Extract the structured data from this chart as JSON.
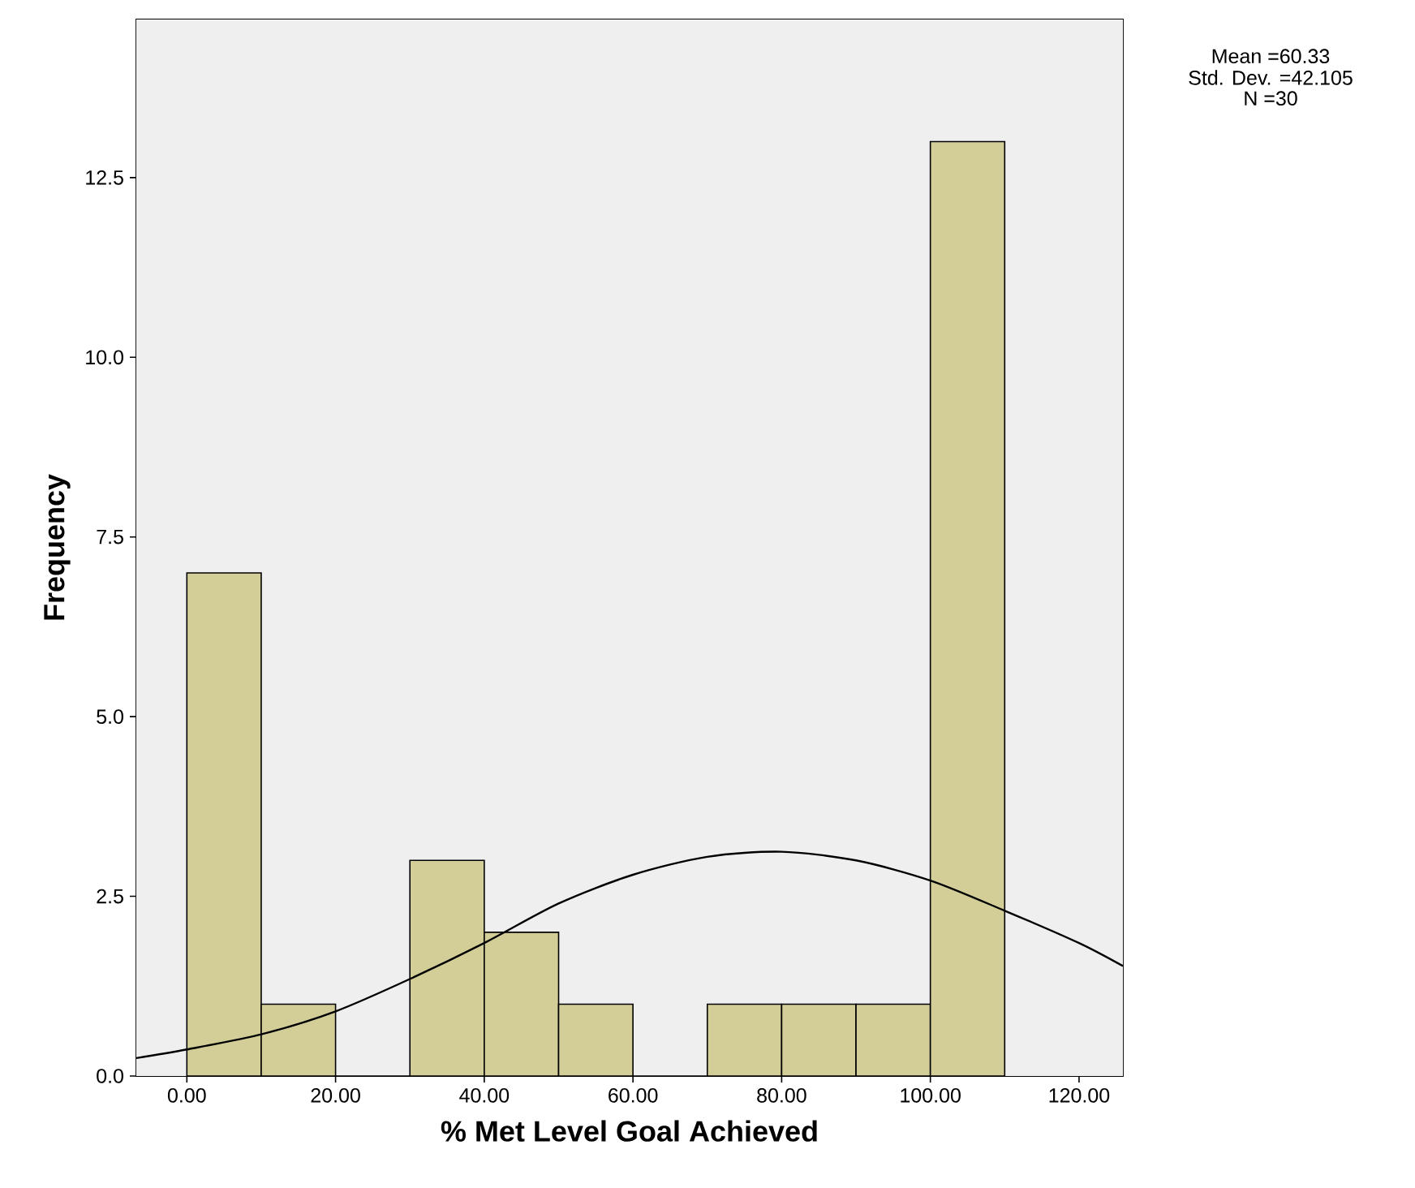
{
  "chart_data": {
    "type": "histogram",
    "xlabel": "% Met Level Goal Achieved",
    "ylabel": "Frequency",
    "bins": [
      0,
      10,
      20,
      30,
      40,
      50,
      60,
      70,
      80,
      90,
      100,
      110
    ],
    "values": [
      7,
      1,
      0,
      3,
      2,
      1,
      0,
      1,
      1,
      1,
      13
    ],
    "color": "#d3ce97",
    "series": [
      {
        "type": "line",
        "color": "#000000",
        "x": [
          -6.8,
          0,
          10,
          20,
          30,
          40,
          50,
          60,
          70,
          80,
          90,
          100,
          110,
          120,
          125.9
        ],
        "values": [
          0.25,
          0.37,
          0.58,
          0.9,
          1.35,
          1.85,
          2.4,
          2.8,
          3.05,
          3.12,
          3.0,
          2.72,
          2.3,
          1.85,
          1.53
        ]
      }
    ],
    "xlim": [
      -6.8,
      125.9
    ],
    "ylim": [
      0,
      14.7
    ],
    "xticks": [
      {
        "value": 0,
        "label": "0.00"
      },
      {
        "value": 20,
        "label": "20.00"
      },
      {
        "value": 40,
        "label": "40.00"
      },
      {
        "value": 60,
        "label": "60.00"
      },
      {
        "value": 80,
        "label": "80.00"
      },
      {
        "value": 100,
        "label": "100.00"
      },
      {
        "value": 120,
        "label": "120.00"
      }
    ],
    "yticks": [
      {
        "value": 0,
        "label": "0.0"
      },
      {
        "value": 2.5,
        "label": "2.5"
      },
      {
        "value": 5,
        "label": "5.0"
      },
      {
        "value": 7.5,
        "label": "7.5"
      },
      {
        "value": 10,
        "label": "10.0"
      },
      {
        "value": 12.5,
        "label": "12.5"
      }
    ],
    "annotations": [
      "Mean =60.33",
      "Std. Dev. =42.105",
      "N =30"
    ]
  }
}
